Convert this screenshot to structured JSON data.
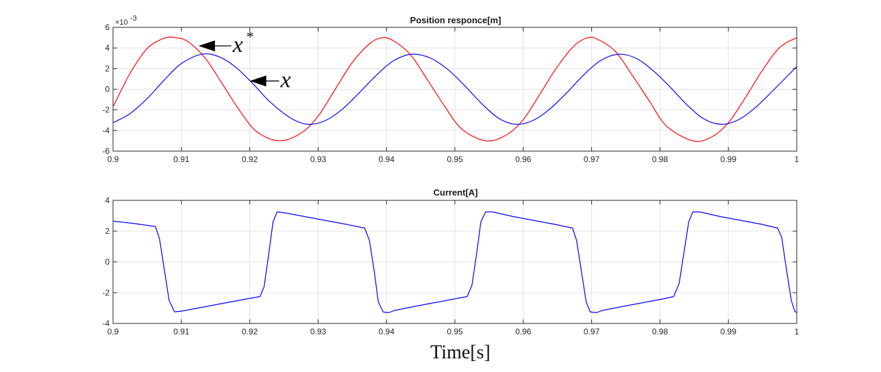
{
  "chart_data": [
    {
      "type": "line",
      "title": "Position responce[m]",
      "xlabel": "",
      "ylabel": "",
      "exponent_label": "×10",
      "exponent_power": "-3",
      "xlim": [
        0.9,
        1.0
      ],
      "ylim": [
        -6,
        6
      ],
      "xticks": [
        0.9,
        0.91,
        0.92,
        0.93,
        0.94,
        0.95,
        0.96,
        0.97,
        0.98,
        0.99,
        1.0
      ],
      "xtick_labels": [
        "0.9",
        "0.91",
        "0.92",
        "0.93",
        "0.94",
        "0.95",
        "0.96",
        "0.97",
        "0.98",
        "0.99",
        "1"
      ],
      "yticks": [
        -6,
        -4,
        -2,
        0,
        2,
        4,
        6
      ],
      "ytick_labels": [
        "-6",
        "-4",
        "-2",
        "0",
        "2",
        "4",
        "6"
      ],
      "grid": true,
      "series": [
        {
          "color": "#ff0000",
          "x": [
            0.9,
            0.9025,
            0.905,
            0.9075,
            0.9092,
            0.911,
            0.9135,
            0.916,
            0.9185,
            0.921,
            0.9243,
            0.9275,
            0.93,
            0.9325,
            0.935,
            0.9375,
            0.9393,
            0.941,
            0.9435,
            0.946,
            0.9485,
            0.951,
            0.9545,
            0.9575,
            0.96,
            0.9625,
            0.965,
            0.9675,
            0.9695,
            0.971,
            0.9735,
            0.976,
            0.9785,
            0.981,
            0.9848,
            0.9875,
            0.99,
            0.9925,
            0.995,
            0.9975,
            1.0
          ],
          "y": [
            -1.7,
            1.55,
            3.95,
            4.95,
            5.0,
            4.6,
            3.0,
            0.5,
            -2.05,
            -4.1,
            -5.0,
            -4.25,
            -2.6,
            0.0,
            2.6,
            4.4,
            5.0,
            4.7,
            3.35,
            0.9,
            -1.65,
            -3.85,
            -5.0,
            -4.45,
            -2.95,
            -0.4,
            2.2,
            4.25,
            5.0,
            4.8,
            3.65,
            1.3,
            -1.2,
            -3.6,
            -5.0,
            -4.65,
            -3.25,
            -0.8,
            1.85,
            4.05,
            5.0
          ]
        },
        {
          "color": "#0000ff",
          "x": [
            0.9,
            0.9025,
            0.905,
            0.9075,
            0.91,
            0.913,
            0.9155,
            0.918,
            0.9205,
            0.923,
            0.926,
            0.9285,
            0.931,
            0.9335,
            0.936,
            0.9385,
            0.941,
            0.9437,
            0.9465,
            0.949,
            0.9515,
            0.954,
            0.9565,
            0.959,
            0.9615,
            0.964,
            0.9665,
            0.969,
            0.9715,
            0.974,
            0.9765,
            0.979,
            0.9815,
            0.984,
            0.9865,
            0.989,
            0.9915,
            0.994,
            0.9965,
            1.0
          ],
          "y": [
            -3.25,
            -2.35,
            -0.9,
            0.9,
            2.5,
            3.4,
            3.15,
            2.1,
            0.5,
            -1.25,
            -2.8,
            -3.4,
            -3.05,
            -1.95,
            -0.35,
            1.35,
            2.75,
            3.4,
            3.0,
            1.9,
            0.3,
            -1.45,
            -2.85,
            -3.4,
            -3.0,
            -1.85,
            -0.25,
            1.5,
            2.85,
            3.4,
            3.0,
            1.8,
            0.2,
            -1.55,
            -2.9,
            -3.4,
            -2.95,
            -1.75,
            -0.15,
            2.2
          ]
        }
      ],
      "annotations": [
        {
          "symbol": "x",
          "sup": "*",
          "x": 0.9125,
          "y": 4.2,
          "text_x": 0.9175,
          "text_y": 4.2
        },
        {
          "symbol": "x",
          "sup": "",
          "x": 0.92,
          "y": 0.8,
          "text_x": 0.9245,
          "text_y": 0.8
        }
      ]
    },
    {
      "type": "line",
      "title": "Current[A]",
      "xlabel": "Time[s]",
      "ylabel": "",
      "xlim": [
        0.9,
        1.0
      ],
      "ylim": [
        -4,
        4
      ],
      "xticks": [
        0.9,
        0.91,
        0.92,
        0.93,
        0.94,
        0.95,
        0.96,
        0.97,
        0.98,
        0.99,
        1.0
      ],
      "xtick_labels": [
        "0.9",
        "0.91",
        "0.92",
        "0.93",
        "0.94",
        "0.95",
        "0.96",
        "0.97",
        "0.98",
        "0.99",
        "1"
      ],
      "yticks": [
        -4,
        -2,
        0,
        2,
        4
      ],
      "ytick_labels": [
        "-4",
        "-2",
        "0",
        "2",
        "4"
      ],
      "grid": true,
      "series": [
        {
          "color": "#0000ff",
          "x": [
            0.9,
            0.903,
            0.9062,
            0.9068,
            0.9075,
            0.9082,
            0.909,
            0.91,
            0.913,
            0.916,
            0.919,
            0.9215,
            0.9221,
            0.9228,
            0.9234,
            0.924,
            0.925,
            0.928,
            0.931,
            0.934,
            0.9368,
            0.9375,
            0.9382,
            0.9388,
            0.9395,
            0.9403,
            0.9412,
            0.944,
            0.947,
            0.95,
            0.9518,
            0.9525,
            0.9532,
            0.9538,
            0.9545,
            0.9555,
            0.9585,
            0.9615,
            0.9645,
            0.9672,
            0.9678,
            0.9685,
            0.9692,
            0.9698,
            0.9707,
            0.9716,
            0.9745,
            0.9775,
            0.9805,
            0.982,
            0.9828,
            0.9835,
            0.9842,
            0.9848,
            0.9858,
            0.9888,
            0.9918,
            0.9948,
            0.9972,
            0.9978,
            0.9985,
            0.9992,
            0.9997,
            1.0
          ],
          "y": [
            2.65,
            2.5,
            2.3,
            1.5,
            -0.5,
            -2.5,
            -3.25,
            -3.2,
            -2.95,
            -2.7,
            -2.45,
            -2.25,
            -1.6,
            0.6,
            2.6,
            3.25,
            3.2,
            2.95,
            2.7,
            2.45,
            2.2,
            1.4,
            -0.6,
            -2.6,
            -3.25,
            -3.3,
            -3.15,
            -2.9,
            -2.65,
            -2.4,
            -2.25,
            -1.5,
            0.6,
            2.6,
            3.25,
            3.25,
            2.95,
            2.7,
            2.45,
            2.2,
            1.4,
            -0.6,
            -2.6,
            -3.25,
            -3.3,
            -3.15,
            -2.9,
            -2.65,
            -2.4,
            -2.25,
            -1.4,
            0.6,
            2.6,
            3.25,
            3.25,
            2.95,
            2.7,
            2.45,
            2.2,
            1.6,
            -0.5,
            -2.5,
            -3.2,
            -3.3
          ]
        }
      ]
    }
  ]
}
